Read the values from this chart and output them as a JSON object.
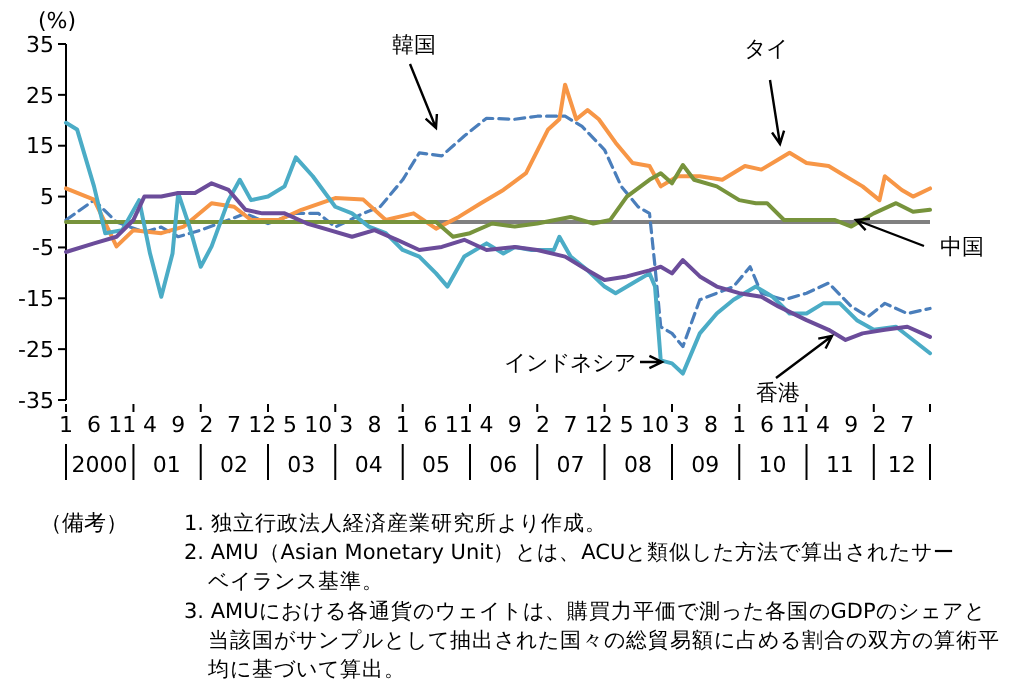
{
  "chart_data": {
    "type": "line",
    "ylabel": "(%)",
    "xlim": [
      "2000-01",
      "2012-11"
    ],
    "ylim": [
      -35,
      35
    ],
    "yticks": [
      -35,
      -25,
      -15,
      -5,
      5,
      15,
      25,
      35
    ],
    "xticks": [
      {
        "value": "2000-01",
        "label": "1"
      },
      {
        "value": "2000-06",
        "label": "6"
      },
      {
        "value": "2000-11",
        "label": "11"
      },
      {
        "value": "2001-04",
        "label": "4"
      },
      {
        "value": "2001-09",
        "label": "9"
      },
      {
        "value": "2002-02",
        "label": "2"
      },
      {
        "value": "2002-07",
        "label": "7"
      },
      {
        "value": "2002-12",
        "label": "12"
      },
      {
        "value": "2003-05",
        "label": "5"
      },
      {
        "value": "2003-10",
        "label": "10"
      },
      {
        "value": "2004-03",
        "label": "3"
      },
      {
        "value": "2004-08",
        "label": "8"
      },
      {
        "value": "2005-01",
        "label": "1"
      },
      {
        "value": "2005-06",
        "label": "6"
      },
      {
        "value": "2005-11",
        "label": "11"
      },
      {
        "value": "2006-04",
        "label": "4"
      },
      {
        "value": "2006-09",
        "label": "9"
      },
      {
        "value": "2007-02",
        "label": "2"
      },
      {
        "value": "2007-07",
        "label": "7"
      },
      {
        "value": "2007-12",
        "label": "12"
      },
      {
        "value": "2008-05",
        "label": "5"
      },
      {
        "value": "2008-10",
        "label": "10"
      },
      {
        "value": "2009-03",
        "label": "3"
      },
      {
        "value": "2009-08",
        "label": "8"
      },
      {
        "value": "2010-01",
        "label": "1"
      },
      {
        "value": "2010-06",
        "label": "6"
      },
      {
        "value": "2010-11",
        "label": "11"
      },
      {
        "value": "2011-04",
        "label": "4"
      },
      {
        "value": "2011-09",
        "label": "9"
      },
      {
        "value": "2012-02",
        "label": "2"
      },
      {
        "value": "2012-07",
        "label": "7"
      }
    ],
    "x2lim": [
      "2000-01",
      "2012-11"
    ],
    "x2ticks": [
      {
        "value": "2000-01",
        "label": null
      },
      {
        "value": "2000-07",
        "label": "2000"
      },
      {
        "value": "2001-01",
        "label": null
      },
      {
        "value": "2001-07",
        "label": "01"
      },
      {
        "value": "2002-01",
        "label": null
      },
      {
        "value": "2002-07",
        "label": "02"
      },
      {
        "value": "2003-01",
        "label": null
      },
      {
        "value": "2003-07",
        "label": "03"
      },
      {
        "value": "2004-01",
        "label": null
      },
      {
        "value": "2004-07",
        "label": "04"
      },
      {
        "value": "2005-01",
        "label": null
      },
      {
        "value": "2005-07",
        "label": "05"
      },
      {
        "value": "2006-01",
        "label": null
      },
      {
        "value": "2006-07",
        "label": "06"
      },
      {
        "value": "2007-01",
        "label": null
      },
      {
        "value": "2007-07",
        "label": "07"
      },
      {
        "value": "2008-01",
        "label": null
      },
      {
        "value": "2008-07",
        "label": "08"
      },
      {
        "value": "2009-01",
        "label": null
      },
      {
        "value": "2009-07",
        "label": "09"
      },
      {
        "value": "2010-01",
        "label": null
      },
      {
        "value": "2010-07",
        "label": "10"
      },
      {
        "value": "2011-01",
        "label": null
      },
      {
        "value": "2011-07",
        "label": "11"
      },
      {
        "value": "2012-01",
        "label": null
      },
      {
        "value": "2012-06",
        "label": "12"
      },
      {
        "value": "2012-11",
        "label": null
      }
    ],
    "ref_lines": [
      {
        "axis": "y",
        "value": 0,
        "color": "#808080"
      }
    ],
    "series": [
      {
        "name": "韓国",
        "color": "#4a7ebb",
        "line_style": "dashed",
        "x": [
          "2000-01",
          "2000-06",
          "2000-10",
          "2001-03",
          "2001-06",
          "2001-09",
          "2002-01",
          "2002-06",
          "2002-09",
          "2003-01",
          "2003-06",
          "2003-10",
          "2004-01",
          "2004-06",
          "2004-09",
          "2005-01",
          "2005-04",
          "2005-08",
          "2005-12",
          "2006-04",
          "2006-09",
          "2007-01",
          "2007-06",
          "2007-09",
          "2008-01",
          "2008-04",
          "2008-07",
          "2008-09",
          "2008-10",
          "2008-11",
          "2009-01",
          "2009-03",
          "2009-06",
          "2009-09",
          "2009-12",
          "2010-03",
          "2010-05",
          "2010-09",
          "2011-01",
          "2011-05",
          "2011-09",
          "2011-12",
          "2012-03",
          "2012-07",
          "2012-11"
        ],
        "values": [
          0.4,
          4.3,
          0,
          -2,
          -1,
          -2.9,
          -1.6,
          0.4,
          1.7,
          -0.3,
          1.7,
          1.7,
          -1,
          1.7,
          3,
          8.3,
          13.6,
          13,
          16.9,
          20.4,
          20.2,
          20.8,
          20.8,
          18.8,
          14.2,
          7,
          3,
          1.7,
          -8.8,
          -20.6,
          -21.9,
          -24.5,
          -15.3,
          -14,
          -12.7,
          -8.8,
          -14,
          -15.3,
          -14,
          -12,
          -16.6,
          -18.6,
          -16,
          -18,
          -17
        ]
      },
      {
        "name": "タイ",
        "color": "#f79646",
        "x": [
          "2000-01",
          "2000-06",
          "2000-10",
          "2001-01",
          "2001-06",
          "2001-10",
          "2002-03",
          "2002-07",
          "2002-10",
          "2003-03",
          "2003-07",
          "2004-01",
          "2004-06",
          "2004-10",
          "2005-03",
          "2005-07",
          "2005-11",
          "2006-03",
          "2006-07",
          "2006-11",
          "2007-03",
          "2007-05",
          "2007-06",
          "2007-08",
          "2007-10",
          "2007-12",
          "2008-03",
          "2008-06",
          "2008-09",
          "2008-11",
          "2009-02",
          "2009-06",
          "2009-10",
          "2010-02",
          "2010-05",
          "2010-08",
          "2010-10",
          "2011-01",
          "2011-05",
          "2011-08",
          "2011-11",
          "2012-02",
          "2012-03",
          "2012-06",
          "2012-08",
          "2012-11"
        ],
        "values": [
          6.6,
          4.4,
          -4.8,
          -1.6,
          -2.2,
          -0.9,
          3.7,
          3,
          0.4,
          0.4,
          2.4,
          4.7,
          4.4,
          0.4,
          1.7,
          -1.3,
          1,
          3.7,
          6.3,
          9.6,
          18.2,
          20.2,
          27,
          20.2,
          22,
          20.2,
          15.6,
          11.6,
          11,
          7,
          9,
          9,
          8.3,
          11,
          10.3,
          12.3,
          13.6,
          11.6,
          11,
          9,
          7,
          4.3,
          9,
          6.3,
          5,
          6.6
        ]
      },
      {
        "name": "中国",
        "color": "#77933c",
        "x": [
          "2000-01",
          "2005-06",
          "2005-07",
          "2005-10",
          "2006-01",
          "2006-05",
          "2006-09",
          "2007-01",
          "2007-07",
          "2007-11",
          "2008-02",
          "2008-05",
          "2008-09",
          "2008-11",
          "2009-01",
          "2009-03",
          "2009-05",
          "2009-09",
          "2010-01",
          "2010-04",
          "2010-06",
          "2010-09",
          "2011-01",
          "2011-06",
          "2011-09",
          "2012-01",
          "2012-05",
          "2012-08",
          "2012-11"
        ],
        "values": [
          0,
          0,
          0,
          -2.9,
          -2.2,
          -0.3,
          -0.9,
          -0.3,
          1,
          -0.3,
          0.4,
          5,
          8.3,
          9.6,
          7.6,
          11.2,
          8.3,
          7,
          4.3,
          3.7,
          3.7,
          0.4,
          0.4,
          0.4,
          -0.9,
          1.7,
          3.7,
          2,
          2.4
        ]
      },
      {
        "name": "インドネシア",
        "color": "#4bacc6",
        "x": [
          "2000-01",
          "2000-03",
          "2000-06",
          "2000-08",
          "2000-11",
          "2001-02",
          "2001-04",
          "2001-06",
          "2001-08",
          "2001-09",
          "2001-11",
          "2002-01",
          "2002-03",
          "2002-06",
          "2002-08",
          "2002-10",
          "2003-01",
          "2003-04",
          "2003-06",
          "2003-09",
          "2004-01",
          "2004-04",
          "2004-07",
          "2004-10",
          "2005-01",
          "2005-04",
          "2005-07",
          "2005-09",
          "2005-12",
          "2006-04",
          "2006-07",
          "2006-09",
          "2006-12",
          "2007-04",
          "2007-05",
          "2007-07",
          "2007-10",
          "2008-01",
          "2008-03",
          "2008-07",
          "2008-09",
          "2008-10",
          "2008-11",
          "2009-01",
          "2009-03",
          "2009-06",
          "2009-09",
          "2009-12",
          "2010-04",
          "2010-07",
          "2010-10",
          "2011-01",
          "2011-04",
          "2011-07",
          "2011-10",
          "2012-01",
          "2012-05",
          "2012-08",
          "2012-11"
        ],
        "values": [
          19.5,
          18.2,
          7,
          -2.2,
          -1.6,
          4.3,
          -6.2,
          -14.7,
          -6.2,
          5.7,
          -0.9,
          -8.8,
          -4.8,
          4.3,
          8.3,
          4.3,
          5,
          7,
          12.7,
          9,
          3,
          1.7,
          -0.9,
          -2.2,
          -5.5,
          -6.8,
          -10.1,
          -12.7,
          -6.8,
          -4.2,
          -6.2,
          -4.9,
          -5.5,
          -5.5,
          -2.9,
          -6.8,
          -9.5,
          -12.7,
          -14,
          -11.4,
          -10.1,
          -12.7,
          -27.2,
          -27.8,
          -29.8,
          -21.9,
          -18,
          -15.3,
          -12.7,
          -14.7,
          -18,
          -18,
          -16,
          -16,
          -19.3,
          -21.2,
          -20.6,
          -23.2,
          -25.8
        ]
      },
      {
        "name": "香港",
        "color": "#6b4c9a",
        "x": [
          "2000-01",
          "2000-06",
          "2000-10",
          "2001-01",
          "2001-03",
          "2001-06",
          "2001-09",
          "2001-12",
          "2002-03",
          "2002-06",
          "2002-09",
          "2002-12",
          "2003-04",
          "2003-08",
          "2003-12",
          "2004-04",
          "2004-08",
          "2004-12",
          "2005-04",
          "2005-08",
          "2005-12",
          "2006-04",
          "2006-09",
          "2007-01",
          "2007-06",
          "2007-10",
          "2008-01",
          "2008-05",
          "2008-09",
          "2008-11",
          "2009-01",
          "2009-03",
          "2009-06",
          "2009-09",
          "2010-01",
          "2010-05",
          "2010-08",
          "2011-01",
          "2011-05",
          "2011-08",
          "2011-11",
          "2012-03",
          "2012-07",
          "2012-11"
        ],
        "values": [
          -5.9,
          -4.2,
          -2.9,
          0.4,
          5,
          5,
          5.7,
          5.7,
          7.6,
          6.3,
          2.4,
          1.7,
          1.7,
          -0.3,
          -1.6,
          -2.9,
          -1.6,
          -3.5,
          -5.5,
          -4.9,
          -3.5,
          -5.5,
          -4.9,
          -5.5,
          -6.8,
          -9.5,
          -11.4,
          -10.7,
          -9.5,
          -8.8,
          -10.1,
          -7.5,
          -10.7,
          -12.7,
          -14,
          -14.7,
          -16.6,
          -19.3,
          -21.2,
          -23.2,
          -21.9,
          -21.2,
          -20.6,
          -22.6
        ]
      }
    ],
    "annotations": [
      "（備考）",
      "1. 独立行政法人経済産業研究所より作成。",
      "2. AMU（Asian Monetary Unit）とは、ACUと類似した方法で算出されたサーベイランス基準。",
      "3. AMUにおける各通貨のウェイトは、購買力平価で測った各国のGDPのシェアと当該国がサンプルとして抽出された国々の総貿易額に占める割合の双方の算術平均に基づいて算出。"
    ]
  }
}
